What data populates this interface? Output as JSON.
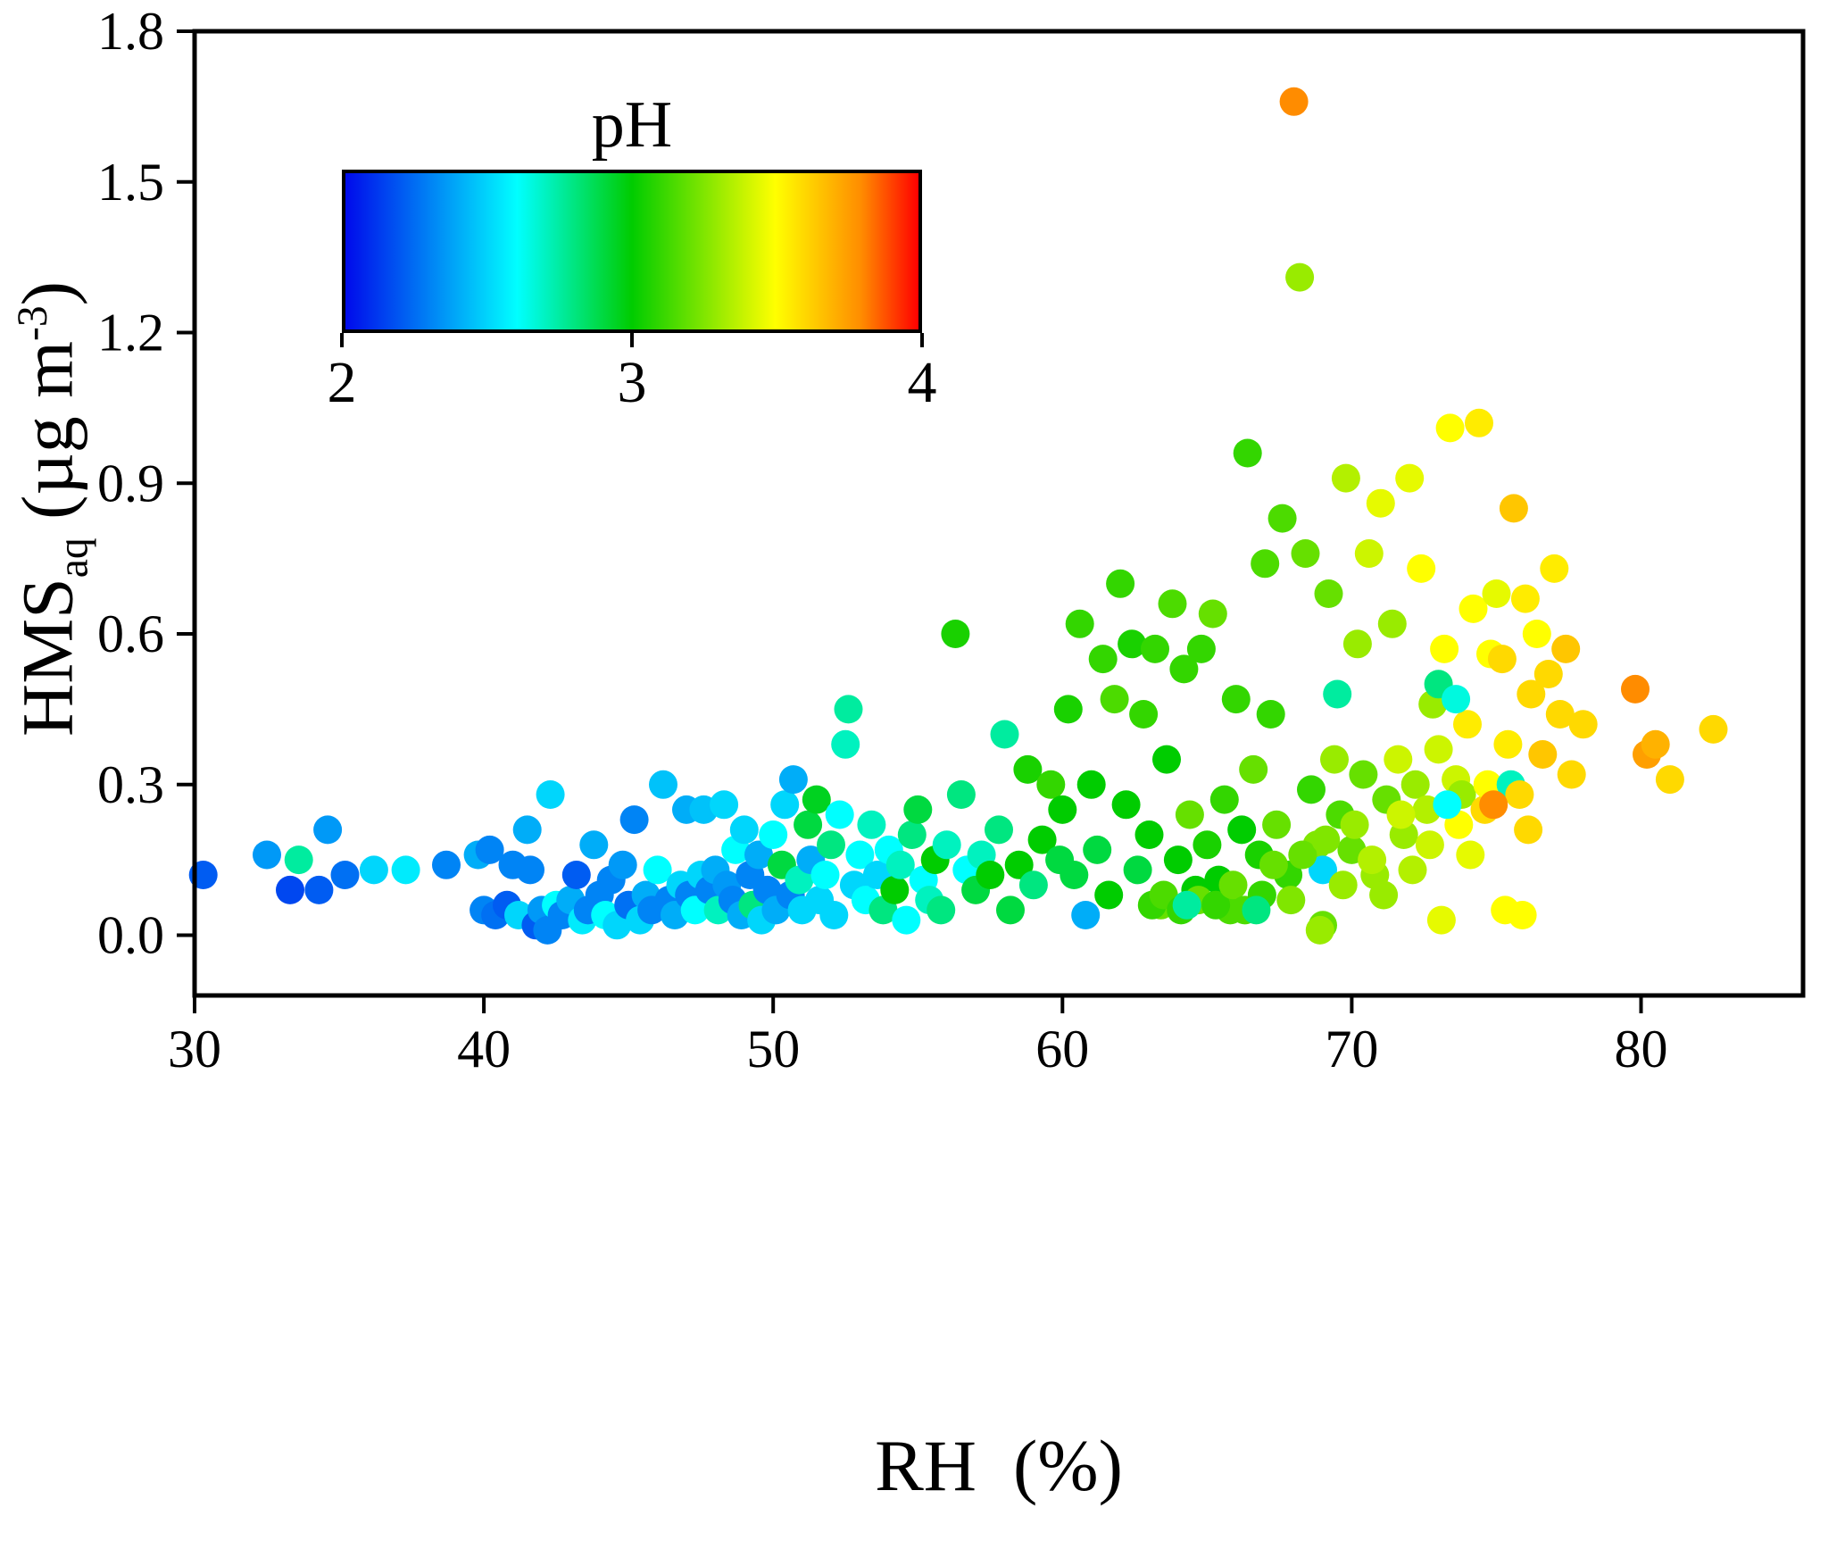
{
  "colors": {
    "background": "#ffffff",
    "frame": "#000000",
    "tick": "#000000"
  },
  "chart_data": {
    "type": "scatter",
    "title": "",
    "xlabel": "RH  (%)",
    "ylabel": {
      "main": "HMS",
      "sub": "aq",
      "unit_pre": " (µg m",
      "sup": "-3",
      "unit_post": ")"
    },
    "xlim": [
      30,
      85.6
    ],
    "ylim": [
      -0.12,
      1.8
    ],
    "x_ticks": [
      30,
      40,
      50,
      60,
      70,
      80
    ],
    "y_tick_values": [
      0,
      0.3,
      0.6,
      0.9,
      1.2,
      1.5,
      1.8
    ],
    "y_tick_labels": [
      "0.0",
      "0.3",
      "0.6",
      "0.9",
      "1.2",
      "1.5",
      "1.8"
    ],
    "grid": false,
    "legend_position": "none",
    "marker_radius_px": 16,
    "colorbar": {
      "title": "pH",
      "min": 2,
      "max": 4,
      "tick_labels": [
        "2",
        "3",
        "4"
      ],
      "stops": [
        {
          "t": 0.0,
          "rgb": [
            0,
            10,
            235
          ]
        },
        {
          "t": 0.3,
          "rgb": [
            0,
            255,
            255
          ]
        },
        {
          "t": 0.5,
          "rgb": [
            0,
            204,
            0
          ]
        },
        {
          "t": 0.75,
          "rgb": [
            255,
            255,
            0
          ]
        },
        {
          "t": 0.9,
          "rgb": [
            255,
            140,
            0
          ]
        },
        {
          "t": 1.0,
          "rgb": [
            255,
            0,
            0
          ]
        }
      ]
    },
    "points_format": [
      "RH_percent",
      "HMS_ug_m3",
      "pH"
    ],
    "points": [
      [
        30.3,
        0.12,
        2.2
      ],
      [
        32.5,
        0.16,
        2.35
      ],
      [
        33.3,
        0.09,
        2.15
      ],
      [
        33.6,
        0.15,
        2.75
      ],
      [
        34.3,
        0.09,
        2.2
      ],
      [
        34.6,
        0.21,
        2.35
      ],
      [
        35.2,
        0.12,
        2.25
      ],
      [
        36.2,
        0.13,
        2.5
      ],
      [
        37.3,
        0.13,
        2.55
      ],
      [
        38.7,
        0.14,
        2.3
      ],
      [
        39.8,
        0.16,
        2.4
      ],
      [
        40.2,
        0.17,
        2.3
      ],
      [
        40.0,
        0.05,
        2.3
      ],
      [
        40.4,
        0.04,
        2.25
      ],
      [
        40.8,
        0.06,
        2.2
      ],
      [
        41.0,
        0.14,
        2.3
      ],
      [
        41.2,
        0.04,
        2.5
      ],
      [
        41.5,
        0.21,
        2.4
      ],
      [
        41.6,
        0.13,
        2.3
      ],
      [
        41.8,
        0.02,
        2.2
      ],
      [
        42.0,
        0.05,
        2.35
      ],
      [
        42.2,
        0.01,
        2.3
      ],
      [
        42.3,
        0.28,
        2.5
      ],
      [
        42.5,
        0.06,
        2.6
      ],
      [
        42.7,
        0.04,
        2.3
      ],
      [
        43.0,
        0.07,
        2.4
      ],
      [
        43.2,
        0.12,
        2.2
      ],
      [
        43.4,
        0.03,
        2.55
      ],
      [
        43.6,
        0.05,
        2.3
      ],
      [
        43.8,
        0.18,
        2.4
      ],
      [
        44.0,
        0.08,
        2.3
      ],
      [
        44.2,
        0.04,
        2.6
      ],
      [
        44.4,
        0.11,
        2.3
      ],
      [
        44.6,
        0.02,
        2.5
      ],
      [
        44.8,
        0.14,
        2.35
      ],
      [
        45.0,
        0.06,
        2.25
      ],
      [
        45.2,
        0.23,
        2.3
      ],
      [
        45.4,
        0.03,
        2.5
      ],
      [
        45.6,
        0.08,
        2.4
      ],
      [
        45.8,
        0.05,
        2.3
      ],
      [
        46.0,
        0.13,
        2.6
      ],
      [
        46.2,
        0.3,
        2.45
      ],
      [
        46.4,
        0.07,
        2.3
      ],
      [
        46.6,
        0.04,
        2.4
      ],
      [
        46.8,
        0.1,
        2.5
      ],
      [
        47.0,
        0.25,
        2.4
      ],
      [
        47.1,
        0.08,
        2.3
      ],
      [
        47.3,
        0.05,
        2.6
      ],
      [
        47.5,
        0.12,
        2.5
      ],
      [
        47.6,
        0.25,
        2.45
      ],
      [
        47.8,
        0.09,
        2.3
      ],
      [
        48.0,
        0.13,
        2.4
      ],
      [
        48.1,
        0.05,
        2.7
      ],
      [
        48.3,
        0.26,
        2.5
      ],
      [
        48.4,
        0.1,
        2.35
      ],
      [
        48.6,
        0.07,
        2.3
      ],
      [
        48.7,
        0.17,
        2.6
      ],
      [
        48.9,
        0.04,
        2.4
      ],
      [
        49.0,
        0.21,
        2.5
      ],
      [
        49.2,
        0.12,
        2.3
      ],
      [
        49.3,
        0.06,
        2.8
      ],
      [
        49.5,
        0.16,
        2.4
      ],
      [
        49.6,
        0.03,
        2.5
      ],
      [
        49.8,
        0.09,
        2.3
      ],
      [
        50.0,
        0.2,
        2.6
      ],
      [
        50.1,
        0.05,
        2.4
      ],
      [
        50.3,
        0.14,
        2.9
      ],
      [
        50.4,
        0.26,
        2.5
      ],
      [
        50.6,
        0.08,
        2.3
      ],
      [
        50.7,
        0.31,
        2.4
      ],
      [
        50.9,
        0.11,
        2.7
      ],
      [
        51.0,
        0.05,
        2.5
      ],
      [
        51.2,
        0.22,
        2.9
      ],
      [
        51.3,
        0.15,
        2.4
      ],
      [
        51.5,
        0.27,
        2.95
      ],
      [
        51.6,
        0.07,
        2.5
      ],
      [
        51.8,
        0.12,
        2.6
      ],
      [
        52.0,
        0.18,
        2.8
      ],
      [
        52.1,
        0.04,
        2.5
      ],
      [
        52.3,
        0.24,
        2.6
      ],
      [
        52.5,
        0.38,
        2.7
      ],
      [
        52.6,
        0.45,
        2.75
      ],
      [
        52.8,
        0.1,
        2.5
      ],
      [
        53.0,
        0.16,
        2.6
      ],
      [
        53.2,
        0.07,
        2.6
      ],
      [
        53.4,
        0.22,
        2.7
      ],
      [
        53.6,
        0.12,
        2.5
      ],
      [
        53.8,
        0.05,
        2.8
      ],
      [
        54.0,
        0.17,
        2.6
      ],
      [
        54.2,
        0.09,
        3.0
      ],
      [
        54.4,
        0.14,
        2.7
      ],
      [
        54.6,
        0.03,
        2.6
      ],
      [
        54.8,
        0.2,
        2.8
      ],
      [
        55.0,
        0.25,
        2.9
      ],
      [
        55.2,
        0.11,
        2.6
      ],
      [
        55.4,
        0.07,
        2.7
      ],
      [
        55.6,
        0.15,
        3.0
      ],
      [
        55.8,
        0.05,
        2.8
      ],
      [
        56.0,
        0.18,
        2.7
      ],
      [
        56.3,
        0.6,
        3.05
      ],
      [
        56.5,
        0.28,
        2.8
      ],
      [
        56.7,
        0.13,
        2.6
      ],
      [
        57.0,
        0.09,
        2.9
      ],
      [
        57.2,
        0.16,
        2.7
      ],
      [
        57.5,
        0.12,
        3.0
      ],
      [
        57.8,
        0.21,
        2.8
      ],
      [
        58.0,
        0.4,
        2.75
      ],
      [
        58.2,
        0.05,
        2.9
      ],
      [
        58.5,
        0.14,
        3.0
      ],
      [
        58.8,
        0.33,
        3.05
      ],
      [
        59.0,
        0.1,
        2.8
      ],
      [
        59.3,
        0.19,
        3.0
      ],
      [
        59.6,
        0.3,
        3.1
      ],
      [
        59.9,
        0.15,
        2.9
      ],
      [
        60.0,
        0.25,
        3.0
      ],
      [
        60.2,
        0.45,
        3.05
      ],
      [
        60.4,
        0.12,
        2.9
      ],
      [
        60.6,
        0.62,
        3.1
      ],
      [
        60.8,
        0.04,
        2.4
      ],
      [
        61.0,
        0.3,
        3.0
      ],
      [
        61.2,
        0.17,
        2.9
      ],
      [
        61.4,
        0.55,
        3.1
      ],
      [
        61.6,
        0.08,
        3.0
      ],
      [
        61.8,
        0.47,
        3.15
      ],
      [
        62.0,
        0.7,
        3.1
      ],
      [
        62.2,
        0.26,
        3.0
      ],
      [
        62.4,
        0.58,
        3.05
      ],
      [
        62.6,
        0.13,
        2.9
      ],
      [
        62.8,
        0.44,
        3.1
      ],
      [
        63.0,
        0.2,
        3.0
      ],
      [
        63.2,
        0.57,
        3.1
      ],
      [
        63.4,
        0.06,
        3.2
      ],
      [
        63.6,
        0.35,
        3.0
      ],
      [
        63.8,
        0.66,
        3.15
      ],
      [
        64.0,
        0.15,
        3.0
      ],
      [
        64.2,
        0.53,
        3.1
      ],
      [
        64.4,
        0.24,
        3.2
      ],
      [
        64.6,
        0.09,
        3.0
      ],
      [
        64.8,
        0.57,
        3.1
      ],
      [
        65.0,
        0.18,
        3.05
      ],
      [
        65.2,
        0.64,
        3.2
      ],
      [
        65.4,
        0.11,
        3.0
      ],
      [
        65.6,
        0.27,
        3.1
      ],
      [
        65.8,
        0.05,
        3.15
      ],
      [
        66.0,
        0.47,
        3.1
      ],
      [
        66.2,
        0.21,
        3.0
      ],
      [
        66.4,
        0.96,
        3.1
      ],
      [
        66.6,
        0.33,
        3.2
      ],
      [
        66.8,
        0.16,
        3.05
      ],
      [
        67.0,
        0.74,
        3.15
      ],
      [
        67.2,
        0.44,
        3.1
      ],
      [
        67.4,
        0.22,
        3.2
      ],
      [
        67.6,
        0.83,
        3.15
      ],
      [
        67.8,
        0.12,
        3.1
      ],
      [
        68.0,
        1.66,
        3.8
      ],
      [
        68.2,
        1.31,
        3.3
      ],
      [
        68.4,
        0.76,
        3.2
      ],
      [
        68.6,
        0.29,
        3.1
      ],
      [
        68.8,
        0.18,
        3.25
      ],
      [
        69.0,
        0.13,
        2.5
      ],
      [
        69.0,
        0.02,
        3.2
      ],
      [
        69.2,
        0.68,
        3.2
      ],
      [
        69.4,
        0.35,
        3.3
      ],
      [
        69.6,
        0.24,
        3.15
      ],
      [
        69.8,
        0.91,
        3.35
      ],
      [
        70.0,
        0.17,
        3.2
      ],
      [
        70.2,
        0.58,
        3.3
      ],
      [
        70.4,
        0.32,
        3.2
      ],
      [
        70.6,
        0.76,
        3.4
      ],
      [
        70.8,
        0.12,
        3.3
      ],
      [
        71.0,
        0.86,
        3.45
      ],
      [
        71.2,
        0.27,
        3.2
      ],
      [
        71.4,
        0.62,
        3.3
      ],
      [
        71.6,
        0.35,
        3.4
      ],
      [
        71.8,
        0.2,
        3.3
      ],
      [
        72.0,
        0.91,
        3.45
      ],
      [
        72.2,
        0.3,
        3.3
      ],
      [
        72.4,
        0.73,
        3.5
      ],
      [
        72.6,
        0.25,
        3.35
      ],
      [
        72.8,
        0.46,
        3.3
      ],
      [
        73.0,
        0.37,
        3.4
      ],
      [
        73.2,
        0.57,
        3.5
      ],
      [
        73.4,
        1.01,
        3.5
      ],
      [
        73.6,
        0.31,
        3.4
      ],
      [
        73.8,
        0.28,
        3.3
      ],
      [
        74.0,
        0.42,
        3.55
      ],
      [
        74.2,
        0.65,
        3.5
      ],
      [
        74.4,
        1.02,
        3.55
      ],
      [
        74.6,
        0.25,
        3.6
      ],
      [
        74.8,
        0.56,
        3.5
      ],
      [
        75.0,
        0.68,
        3.45
      ],
      [
        63.1,
        0.06,
        3.1
      ],
      [
        63.5,
        0.08,
        3.15
      ],
      [
        64.1,
        0.05,
        3.1
      ],
      [
        64.7,
        0.07,
        3.2
      ],
      [
        65.3,
        0.06,
        3.1
      ],
      [
        65.9,
        0.1,
        3.2
      ],
      [
        66.3,
        0.05,
        3.15
      ],
      [
        66.9,
        0.08,
        3.1
      ],
      [
        67.3,
        0.14,
        3.2
      ],
      [
        67.9,
        0.07,
        3.25
      ],
      [
        68.3,
        0.16,
        3.2
      ],
      [
        68.9,
        0.01,
        3.3
      ],
      [
        69.1,
        0.19,
        3.25
      ],
      [
        69.7,
        0.1,
        3.3
      ],
      [
        70.1,
        0.22,
        3.3
      ],
      [
        70.7,
        0.15,
        3.35
      ],
      [
        71.1,
        0.08,
        3.3
      ],
      [
        71.7,
        0.24,
        3.4
      ],
      [
        72.1,
        0.13,
        3.35
      ],
      [
        72.7,
        0.18,
        3.4
      ],
      [
        73.1,
        0.03,
        3.45
      ],
      [
        73.7,
        0.22,
        3.5
      ],
      [
        74.1,
        0.16,
        3.45
      ],
      [
        74.7,
        0.3,
        3.5
      ],
      [
        75.3,
        0.05,
        3.5
      ],
      [
        69.5,
        0.48,
        2.75
      ],
      [
        73.0,
        0.5,
        2.8
      ],
      [
        73.3,
        0.26,
        2.6
      ],
      [
        75.5,
        0.3,
        2.7
      ],
      [
        66.7,
        0.05,
        2.8
      ],
      [
        64.3,
        0.06,
        2.75
      ],
      [
        73.6,
        0.47,
        2.65
      ],
      [
        75.2,
        0.55,
        3.6
      ],
      [
        75.4,
        0.38,
        3.55
      ],
      [
        75.6,
        0.85,
        3.65
      ],
      [
        75.8,
        0.28,
        3.6
      ],
      [
        76.0,
        0.67,
        3.55
      ],
      [
        76.2,
        0.48,
        3.6
      ],
      [
        76.4,
        0.6,
        3.5
      ],
      [
        76.6,
        0.36,
        3.65
      ],
      [
        76.8,
        0.52,
        3.6
      ],
      [
        77.0,
        0.73,
        3.55
      ],
      [
        77.2,
        0.44,
        3.6
      ],
      [
        77.4,
        0.57,
        3.65
      ],
      [
        77.6,
        0.32,
        3.6
      ],
      [
        78.0,
        0.42,
        3.6
      ],
      [
        79.8,
        0.49,
        3.8
      ],
      [
        80.2,
        0.36,
        3.75
      ],
      [
        80.5,
        0.38,
        3.7
      ],
      [
        81.0,
        0.31,
        3.6
      ],
      [
        82.5,
        0.41,
        3.6
      ],
      [
        76.1,
        0.21,
        3.6
      ],
      [
        75.9,
        0.04,
        3.5
      ],
      [
        74.9,
        0.26,
        3.8
      ]
    ]
  }
}
